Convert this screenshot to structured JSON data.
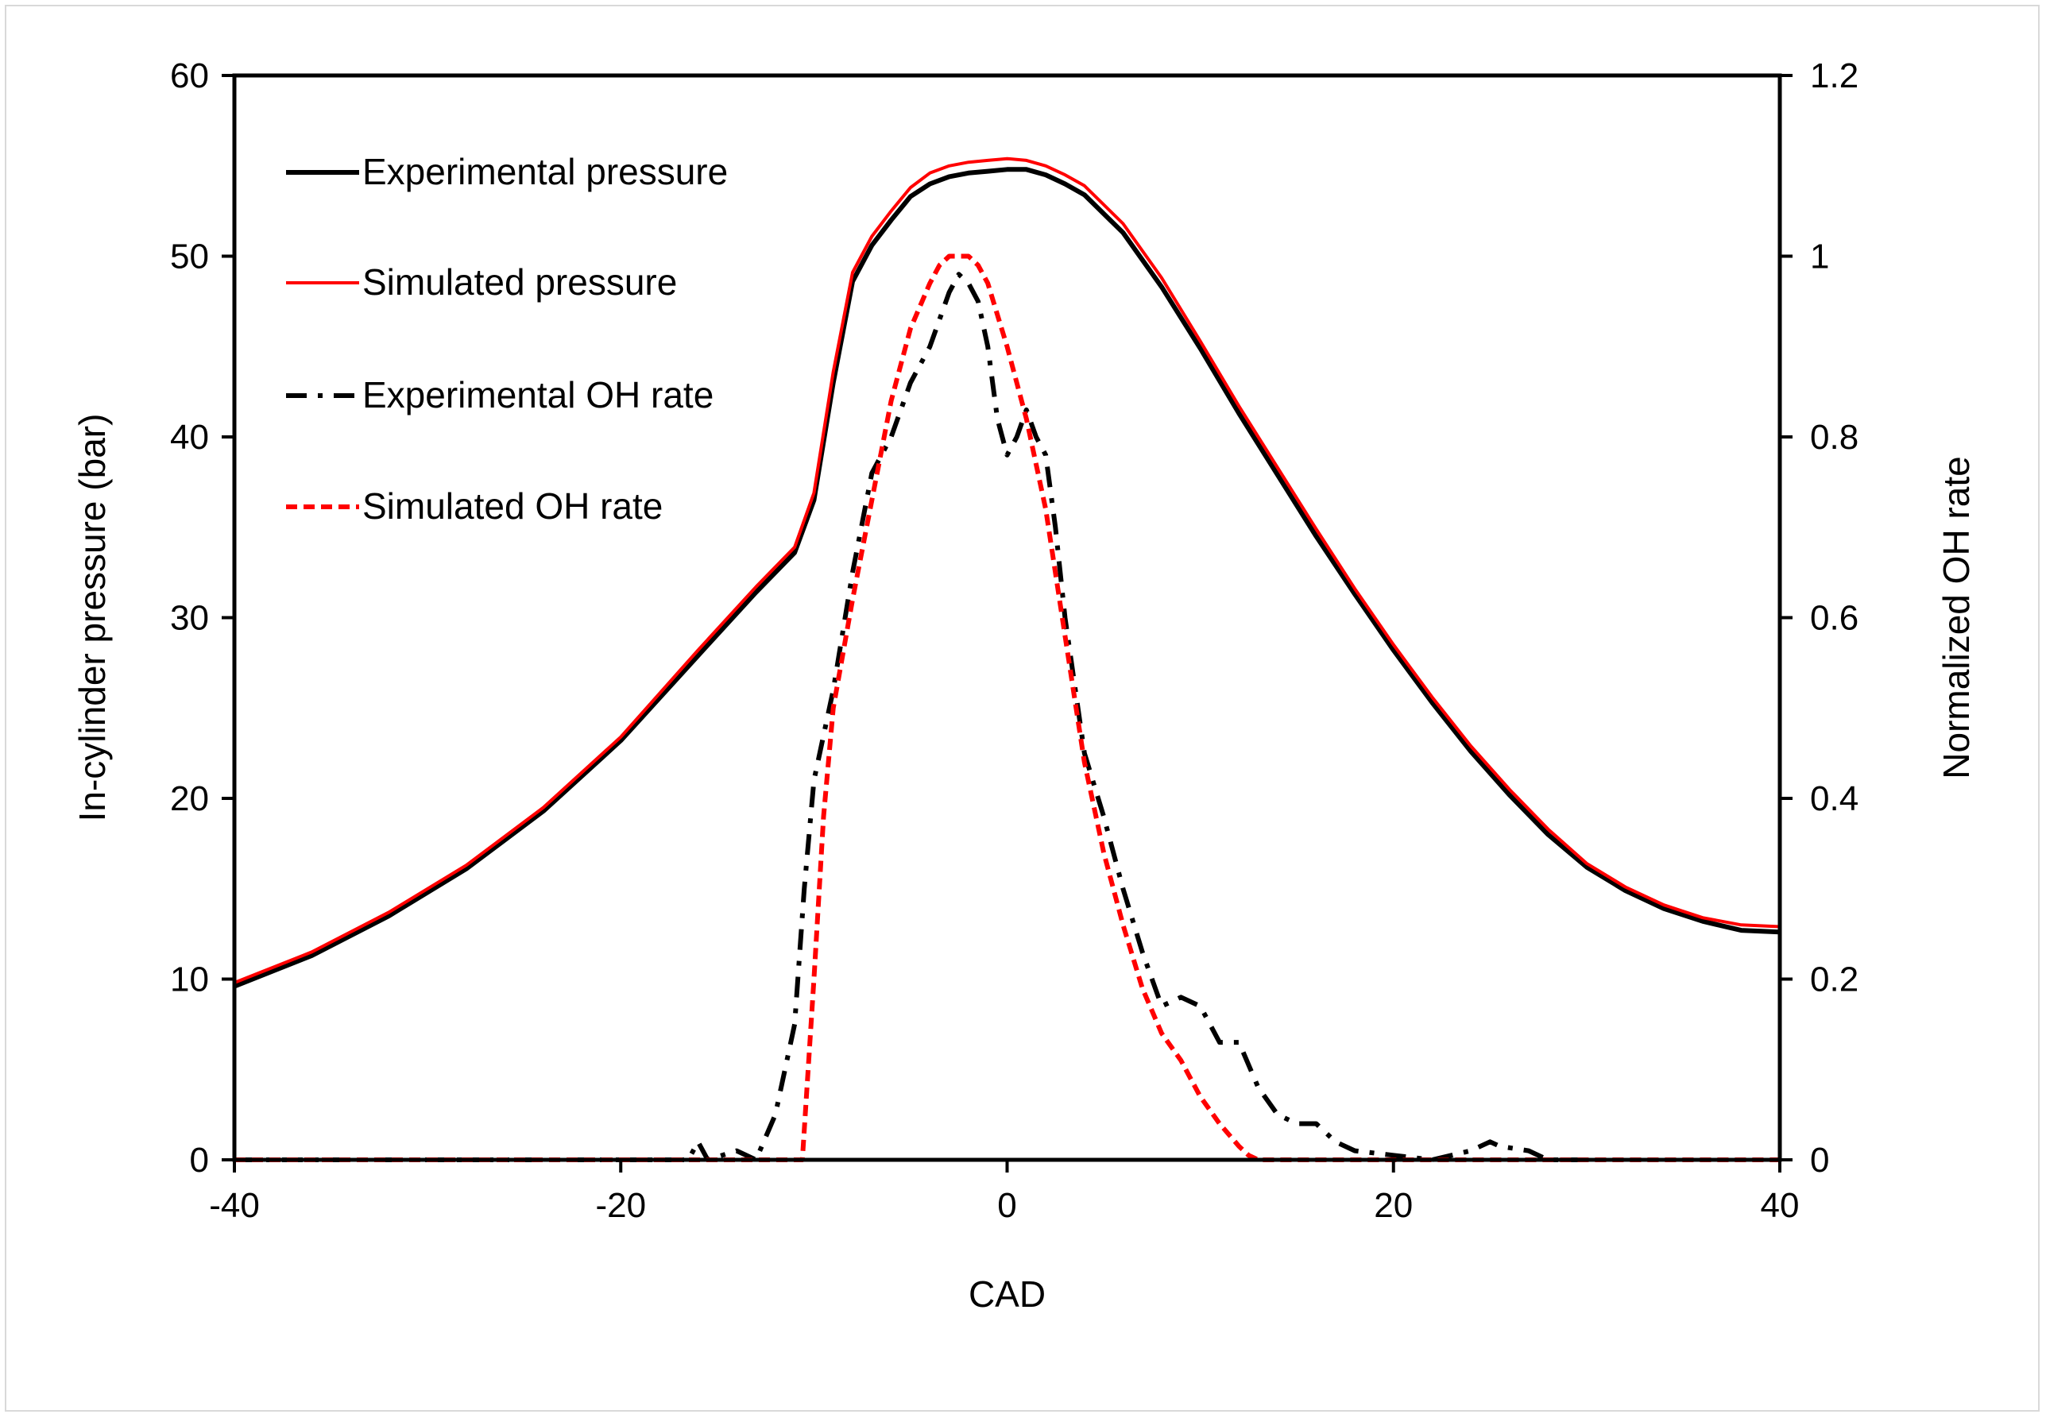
{
  "chart_data": {
    "type": "line",
    "title": "",
    "xlabel": "CAD",
    "ylabel_left": "In-cylinder pressure (bar)",
    "ylabel_right": "Normalized OH rate",
    "xlim": [
      -40,
      40
    ],
    "ylim_left": [
      0,
      60
    ],
    "ylim_right": [
      0,
      1.2
    ],
    "x_ticks": [
      -40,
      -20,
      0,
      20,
      40
    ],
    "x_tick_labels": [
      "-40",
      "-20",
      "0",
      "20",
      "40"
    ],
    "y_left_ticks": [
      0,
      10,
      20,
      30,
      40,
      50,
      60
    ],
    "y_left_tick_labels": [
      "0",
      "10",
      "20",
      "30",
      "40",
      "50",
      "60"
    ],
    "y_right_ticks": [
      0,
      0.2,
      0.4,
      0.6,
      0.8,
      1,
      1.2
    ],
    "y_right_tick_labels": [
      "0",
      "0.2",
      "0.4",
      "0.6",
      "0.8",
      "1",
      "1.2"
    ],
    "grid": false,
    "legend_position": "top-left",
    "series": [
      {
        "name": "Experimental pressure",
        "axis": "left",
        "color": "#000000",
        "style": "solid",
        "x": [
          -40,
          -36,
          -32,
          -28,
          -24,
          -20,
          -16,
          -13,
          -11,
          -10,
          -9,
          -8,
          -7,
          -6,
          -5,
          -4,
          -3,
          -2,
          -1,
          0,
          1,
          2,
          3,
          4,
          6,
          8,
          10,
          12,
          14,
          16,
          18,
          20,
          22,
          24,
          26,
          28,
          30,
          32,
          34,
          36,
          38,
          40
        ],
        "y": [
          9.6,
          11.3,
          13.5,
          16.1,
          19.3,
          23.2,
          27.9,
          31.4,
          33.6,
          36.5,
          43.0,
          48.6,
          50.6,
          52.0,
          53.3,
          54.0,
          54.4,
          54.6,
          54.7,
          54.8,
          54.8,
          54.5,
          54.0,
          53.4,
          51.3,
          48.3,
          44.9,
          41.3,
          37.9,
          34.5,
          31.3,
          28.2,
          25.3,
          22.6,
          20.2,
          18.0,
          16.2,
          14.9,
          13.9,
          13.2,
          12.7,
          12.6
        ]
      },
      {
        "name": "Simulated pressure",
        "axis": "left",
        "color": "#ff0000",
        "style": "solid",
        "x": [
          -40,
          -36,
          -32,
          -28,
          -24,
          -20,
          -16,
          -13,
          -11,
          -10,
          -9,
          -8,
          -7,
          -6,
          -5,
          -4,
          -3,
          -2,
          -1,
          0,
          1,
          2,
          3,
          4,
          6,
          8,
          10,
          12,
          14,
          16,
          18,
          20,
          22,
          24,
          26,
          28,
          30,
          32,
          34,
          36,
          38,
          40
        ],
        "y": [
          9.8,
          11.5,
          13.7,
          16.3,
          19.5,
          23.4,
          28.2,
          31.7,
          33.9,
          36.9,
          43.6,
          49.1,
          51.1,
          52.5,
          53.8,
          54.6,
          55.0,
          55.2,
          55.3,
          55.4,
          55.3,
          55.0,
          54.5,
          53.9,
          51.8,
          48.8,
          45.3,
          41.7,
          38.3,
          34.9,
          31.6,
          28.5,
          25.6,
          22.9,
          20.5,
          18.3,
          16.4,
          15.1,
          14.1,
          13.4,
          13.0,
          12.9
        ]
      },
      {
        "name": "Experimental OH rate",
        "axis": "right",
        "color": "#000000",
        "style": "dash-dot",
        "x": [
          -40,
          -16.5,
          -16,
          -15.5,
          -14,
          -13,
          -12,
          -11,
          -10.5,
          -10,
          -9,
          -8,
          -7,
          -6,
          -5,
          -4,
          -3,
          -2.5,
          -2,
          -1.5,
          -1,
          -0.5,
          0,
          0.5,
          1,
          1.5,
          2,
          2.5,
          3,
          4,
          5,
          6,
          7,
          8,
          9,
          10,
          10.5,
          11,
          12,
          13,
          14,
          15,
          16,
          16.5,
          17,
          18,
          20,
          22,
          24,
          25,
          25.5,
          27,
          28,
          30
        ],
        "y": [
          0,
          0,
          0.02,
          0,
          0.01,
          0,
          0.05,
          0.15,
          0.3,
          0.42,
          0.52,
          0.65,
          0.76,
          0.8,
          0.86,
          0.9,
          0.96,
          0.98,
          0.97,
          0.95,
          0.9,
          0.82,
          0.78,
          0.8,
          0.83,
          0.8,
          0.78,
          0.7,
          0.6,
          0.45,
          0.38,
          0.3,
          0.23,
          0.17,
          0.18,
          0.17,
          0.15,
          0.13,
          0.13,
          0.08,
          0.05,
          0.04,
          0.04,
          0.03,
          0.02,
          0.01,
          0.005,
          0,
          0.01,
          0.02,
          0.015,
          0.01,
          0,
          0
        ]
      },
      {
        "name": "Simulated OH rate",
        "axis": "right",
        "color": "#ff0000",
        "style": "dashed",
        "x": [
          -40,
          -15,
          -11,
          -10.6,
          -10.3,
          -10,
          -9.5,
          -9,
          -8,
          -7,
          -6,
          -5,
          -4,
          -3.5,
          -3,
          -2.5,
          -2,
          -1.5,
          -1,
          0,
          1,
          2,
          3,
          4,
          5,
          6,
          7,
          8,
          9,
          10,
          11,
          12,
          12.5,
          13,
          15,
          40
        ],
        "y": [
          0,
          0,
          0,
          0,
          0.1,
          0.2,
          0.38,
          0.5,
          0.62,
          0.73,
          0.84,
          0.92,
          0.97,
          0.99,
          1.0,
          1.0,
          1.0,
          0.99,
          0.97,
          0.9,
          0.82,
          0.72,
          0.58,
          0.44,
          0.34,
          0.26,
          0.19,
          0.14,
          0.11,
          0.07,
          0.04,
          0.015,
          0.005,
          0,
          0,
          0
        ]
      }
    ]
  }
}
